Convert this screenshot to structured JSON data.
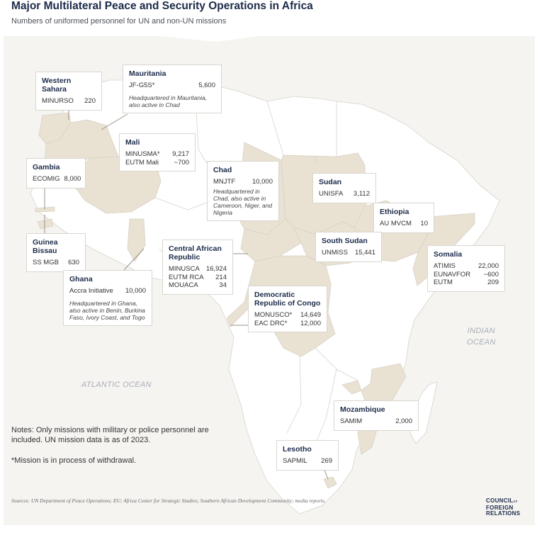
{
  "header": {
    "title": "Major Multilateral Peace and Security Operations in Africa",
    "subtitle": "Numbers of uniformed personnel for UN and non-UN missions"
  },
  "colors": {
    "land": "#ffffff",
    "highlight": "#e9e1d1",
    "ocean": "#f5f4f1",
    "border": "#d7d3ca",
    "leader": "#9a9488"
  },
  "oceans": {
    "atlantic": "ATLANTIC OCEAN",
    "indian_line1": "INDIAN",
    "indian_line2": "OCEAN"
  },
  "callouts": {
    "western_sahara": {
      "name": "Western Sahara",
      "missions": [
        {
          "label": "MINURSO",
          "value": "220"
        }
      ]
    },
    "mauritania": {
      "name": "Mauritania",
      "missions": [
        {
          "label": "JF-G5S*",
          "value": "5,600"
        }
      ],
      "note": "Headquartered in Mauritania, also active in Chad"
    },
    "mali": {
      "name": "Mali",
      "missions": [
        {
          "label": "MINUSMA*",
          "value": "9,217"
        },
        {
          "label": "EUTM Mali",
          "value": "~700"
        }
      ]
    },
    "gambia": {
      "name": "Gambia",
      "missions": [
        {
          "label": "ECOMIG",
          "value": "8,000"
        }
      ]
    },
    "chad": {
      "name": "Chad",
      "missions": [
        {
          "label": "MNJTF",
          "value": "10,000"
        }
      ],
      "note": "Headquartered in Chad, also active in Cameroon, Niger, and Nigeria"
    },
    "sudan": {
      "name": "Sudan",
      "missions": [
        {
          "label": "UNISFA",
          "value": "3,112"
        }
      ]
    },
    "ethiopia": {
      "name": "Ethiopia",
      "missions": [
        {
          "label": "AU MVCM",
          "value": "10"
        }
      ]
    },
    "guinea_bissau": {
      "name": "Guinea Bissau",
      "missions": [
        {
          "label": "SS MGB",
          "value": "630"
        }
      ]
    },
    "south_sudan": {
      "name": "South Sudan",
      "missions": [
        {
          "label": "UNMISS",
          "value": "15,441"
        }
      ]
    },
    "somalia": {
      "name": "Somalia",
      "missions": [
        {
          "label": "ATIMIS",
          "value": "22,000"
        },
        {
          "label": "EUNAVFOR",
          "value": "~600"
        },
        {
          "label": "EUTM",
          "value": "209"
        }
      ]
    },
    "car": {
      "name": "Central African Republic",
      "missions": [
        {
          "label": "MINUSCA",
          "value": "16,924"
        },
        {
          "label": "EUTM RCA",
          "value": "214"
        },
        {
          "label": "MOUACA",
          "value": "34"
        }
      ]
    },
    "ghana": {
      "name": "Ghana",
      "missions": [
        {
          "label": "Accra Initiative",
          "value": "10,000"
        }
      ],
      "note": "Headquartered in Ghana, also active in Benin, Burkina Faso, Ivory Coast, and Togo"
    },
    "drc": {
      "name": "Democratic Republic of Congo",
      "missions": [
        {
          "label": "MONUSCO*",
          "value": "14,649"
        },
        {
          "label": "EAC DRC*",
          "value": "12,000"
        }
      ]
    },
    "mozambique": {
      "name": "Mozambique",
      "missions": [
        {
          "label": "SAMIM",
          "value": "2,000"
        }
      ]
    },
    "lesotho": {
      "name": "Lesotho",
      "missions": [
        {
          "label": "SAPMIL",
          "value": "269"
        }
      ]
    }
  },
  "notes": {
    "main": "Notes: Only missions with military or police personnel are included. UN mission data is as of 2023.",
    "asterisk": "*Mission is in process of withdrawal.",
    "sources": "Sources: UN Department of Peace Operations; EU; Africa Center for Strategic Studies; Southern African Development Community; media reports."
  },
  "logo": {
    "line1": "COUNCIL",
    "line1_small": "on",
    "line2": "FOREIGN",
    "line3": "RELATIONS"
  }
}
